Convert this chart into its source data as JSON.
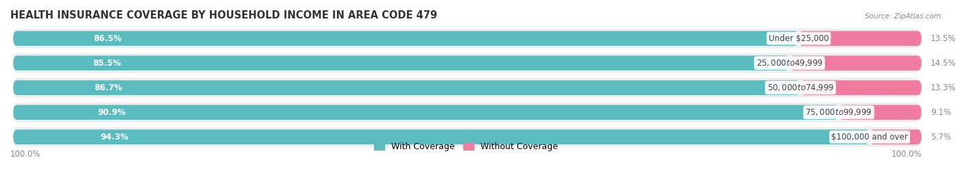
{
  "title": "HEALTH INSURANCE COVERAGE BY HOUSEHOLD INCOME IN AREA CODE 479",
  "source": "Source: ZipAtlas.com",
  "categories": [
    "Under $25,000",
    "$25,000 to $49,999",
    "$50,000 to $74,999",
    "$75,000 to $99,999",
    "$100,000 and over"
  ],
  "with_coverage": [
    86.5,
    85.5,
    86.7,
    90.9,
    94.3
  ],
  "without_coverage": [
    13.5,
    14.5,
    13.3,
    9.1,
    5.7
  ],
  "color_with": "#5bbcbf",
  "color_without": "#f07ca0",
  "background_color": "#ffffff",
  "row_bg_color": "#eeeeee",
  "title_fontsize": 10.5,
  "label_fontsize": 8.5,
  "pct_fontsize": 8.5,
  "tick_fontsize": 8.5,
  "legend_fontsize": 9,
  "bar_height": 0.6
}
